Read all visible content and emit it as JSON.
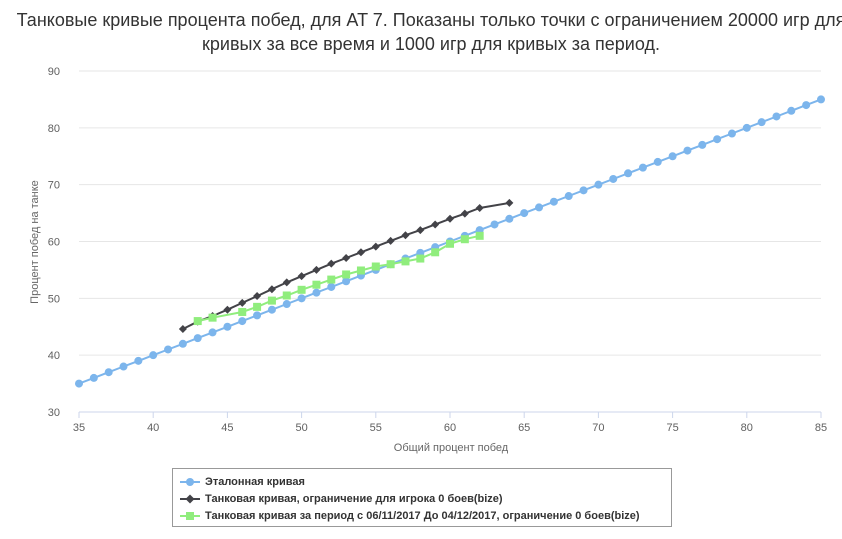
{
  "chart_data": {
    "type": "line",
    "title": "Танковые кривые процента побед, для AT 7. Показаны только точки с ограничением 20000 игр для кривых за все время и 1000 игр для кривых за период.",
    "xlabel": "Общий процент побед",
    "ylabel": "Процент побед на танке",
    "xlim": [
      35,
      85
    ],
    "ylim": [
      30,
      90
    ],
    "x_ticks": [
      "35",
      "40",
      "45",
      "50",
      "55",
      "60",
      "65",
      "70",
      "75",
      "80",
      "85"
    ],
    "y_ticks": [
      "30",
      "40",
      "50",
      "60",
      "70",
      "80",
      "90"
    ],
    "grid": "horizontal",
    "legend_position": "bottom-left",
    "series": [
      {
        "name": "Эталонная кривая",
        "color": "#7cb5ec",
        "marker": "circle",
        "x": [
          35,
          36,
          37,
          38,
          39,
          40,
          41,
          42,
          43,
          44,
          45,
          46,
          47,
          48,
          49,
          50,
          51,
          52,
          53,
          54,
          55,
          56,
          57,
          58,
          59,
          60,
          61,
          62,
          63,
          64,
          65,
          66,
          67,
          68,
          69,
          70,
          71,
          72,
          73,
          74,
          75,
          76,
          77,
          78,
          79,
          80,
          81,
          82,
          83,
          84,
          85
        ],
        "y": [
          35,
          36,
          37,
          38,
          39,
          40,
          41,
          42,
          43,
          44,
          45,
          46,
          47,
          48,
          49,
          50,
          51,
          52,
          53,
          54,
          55,
          56,
          57,
          58,
          59,
          60,
          61,
          62,
          63,
          64,
          65,
          66,
          67,
          68,
          69,
          70,
          71,
          72,
          73,
          74,
          75,
          76,
          77,
          78,
          79,
          80,
          81,
          82,
          83,
          84,
          85
        ]
      },
      {
        "name": "Танковая кривая, ограничение для игрока 0 боев(bize)",
        "color": "#434348",
        "marker": "diamond",
        "x": [
          42,
          43,
          44,
          45,
          46,
          47,
          48,
          49,
          50,
          51,
          52,
          53,
          54,
          55,
          56,
          57,
          58,
          59,
          60,
          61,
          62,
          64
        ],
        "y": [
          44.6,
          45.9,
          46.9,
          48.0,
          49.2,
          50.4,
          51.6,
          52.8,
          53.9,
          55.0,
          56.1,
          57.1,
          58.1,
          59.1,
          60.1,
          61.1,
          62.0,
          63.0,
          64.0,
          64.9,
          65.9,
          66.8
        ]
      },
      {
        "name": "Танковая кривая за период с 06/11/2017 До 04/12/2017, ограничение 0 боев(bize)",
        "color": "#90ed7d",
        "marker": "square",
        "x": [
          43,
          44,
          46,
          47,
          48,
          49,
          50,
          51,
          52,
          53,
          54,
          55,
          56,
          57,
          58,
          59,
          60,
          61,
          62
        ],
        "y": [
          46.0,
          46.6,
          47.6,
          48.5,
          49.6,
          50.5,
          51.5,
          52.4,
          53.3,
          54.2,
          54.9,
          55.6,
          56.0,
          56.5,
          57.0,
          58.1,
          59.6,
          60.4,
          61.0
        ]
      }
    ]
  }
}
